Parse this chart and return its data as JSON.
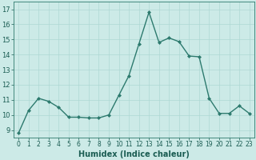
{
  "x": [
    0,
    1,
    2,
    3,
    4,
    5,
    6,
    7,
    8,
    9,
    10,
    11,
    12,
    13,
    14,
    15,
    16,
    17,
    18,
    19,
    20,
    21,
    22,
    23
  ],
  "y": [
    8.8,
    10.3,
    11.1,
    10.9,
    10.5,
    9.85,
    9.85,
    9.8,
    9.8,
    10.0,
    11.3,
    12.6,
    14.7,
    16.8,
    14.8,
    15.1,
    14.85,
    13.9,
    13.85,
    11.1,
    10.1,
    10.1,
    10.6,
    10.1
  ],
  "line_color": "#2d7a6e",
  "marker": "D",
  "marker_size": 2.0,
  "line_width": 1.0,
  "xlabel": "Humidex (Indice chaleur)",
  "xlabel_fontsize": 7,
  "xlabel_color": "#1a5c52",
  "tick_color": "#1a5c52",
  "ylim": [
    8.5,
    17.5
  ],
  "yticks": [
    9,
    10,
    11,
    12,
    13,
    14,
    15,
    16,
    17
  ],
  "xlim": [
    -0.5,
    23.5
  ],
  "xticks": [
    0,
    1,
    2,
    3,
    4,
    5,
    6,
    7,
    8,
    9,
    10,
    11,
    12,
    13,
    14,
    15,
    16,
    17,
    18,
    19,
    20,
    21,
    22,
    23
  ],
  "xtick_labels": [
    "0",
    "1",
    "2",
    "3",
    "4",
    "5",
    "6",
    "7",
    "8",
    "9",
    "10",
    "11",
    "12",
    "13",
    "14",
    "15",
    "16",
    "17",
    "18",
    "19",
    "20",
    "21",
    "22",
    "23"
  ],
  "background_color": "#cceae7",
  "grid_color": "#aed8d4",
  "grid_linewidth": 0.5,
  "tick_fontsize": 5.5,
  "ytick_fontsize": 6
}
